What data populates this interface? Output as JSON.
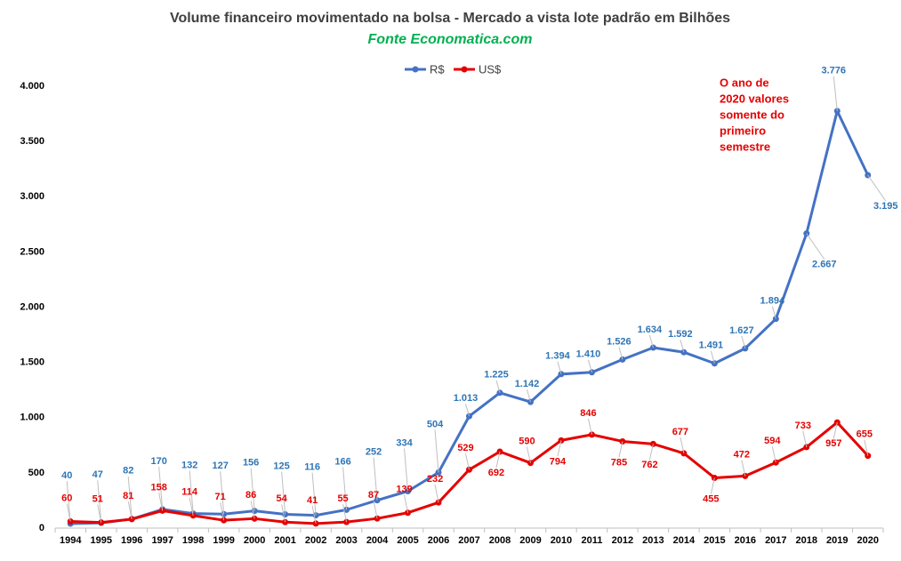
{
  "chart_data": {
    "type": "line",
    "title": "Volume financeiro movimentado na bolsa - Mercado a vista lote padrão em Bilhões",
    "subtitle": "Fonte Economatica.com",
    "annotation": [
      "O ano de",
      "2020 valores",
      "somente do",
      "primeiro",
      "semestre"
    ],
    "categories": [
      "1994",
      "1995",
      "1996",
      "1997",
      "1998",
      "1999",
      "2000",
      "2001",
      "2002",
      "2003",
      "2004",
      "2005",
      "2006",
      "2007",
      "2008",
      "2009",
      "2010",
      "2011",
      "2012",
      "2013",
      "2014",
      "2015",
      "2016",
      "2017",
      "2018",
      "2019",
      "2020"
    ],
    "series": [
      {
        "name": "R$",
        "color": "#4472c4",
        "label_color": "#2e75b6",
        "values": [
          40,
          47,
          82,
          170,
          132,
          127,
          156,
          125,
          116,
          166,
          252,
          334,
          504,
          1013,
          1225,
          1142,
          1394,
          1410,
          1526,
          1634,
          1592,
          1491,
          1627,
          1894,
          2667,
          3776,
          3195
        ],
        "value_labels": [
          "40",
          "47",
          "82",
          "170",
          "132",
          "127",
          "156",
          "125",
          "116",
          "166",
          "252",
          "334",
          "504",
          "1.013",
          "1.225",
          "1.142",
          "1.394",
          "1.410",
          "1.526",
          "1.634",
          "1.592",
          "1.491",
          "1.627",
          "1.894",
          "2.667",
          "3.776",
          "3.195"
        ]
      },
      {
        "name": "US$",
        "color": "#e60000",
        "label_color": "#e60000",
        "values": [
          60,
          51,
          81,
          158,
          114,
          71,
          86,
          54,
          41,
          55,
          87,
          139,
          232,
          529,
          692,
          590,
          794,
          846,
          785,
          762,
          677,
          455,
          472,
          594,
          733,
          957,
          655
        ]
      }
    ],
    "ylim": [
      0,
      4000
    ],
    "yticks": [
      0,
      500,
      {
        "value": 1000,
        "label": "1.000"
      },
      {
        "value": 1500,
        "label": "1.500"
      },
      {
        "value": 2000,
        "label": "2.000"
      },
      {
        "value": 2500,
        "label": "2.500"
      },
      {
        "value": 3000,
        "label": "3.000"
      },
      {
        "value": 3500,
        "label": "3.500"
      },
      {
        "value": 4000,
        "label": "4.000"
      }
    ],
    "grid": false,
    "legend": "top"
  }
}
